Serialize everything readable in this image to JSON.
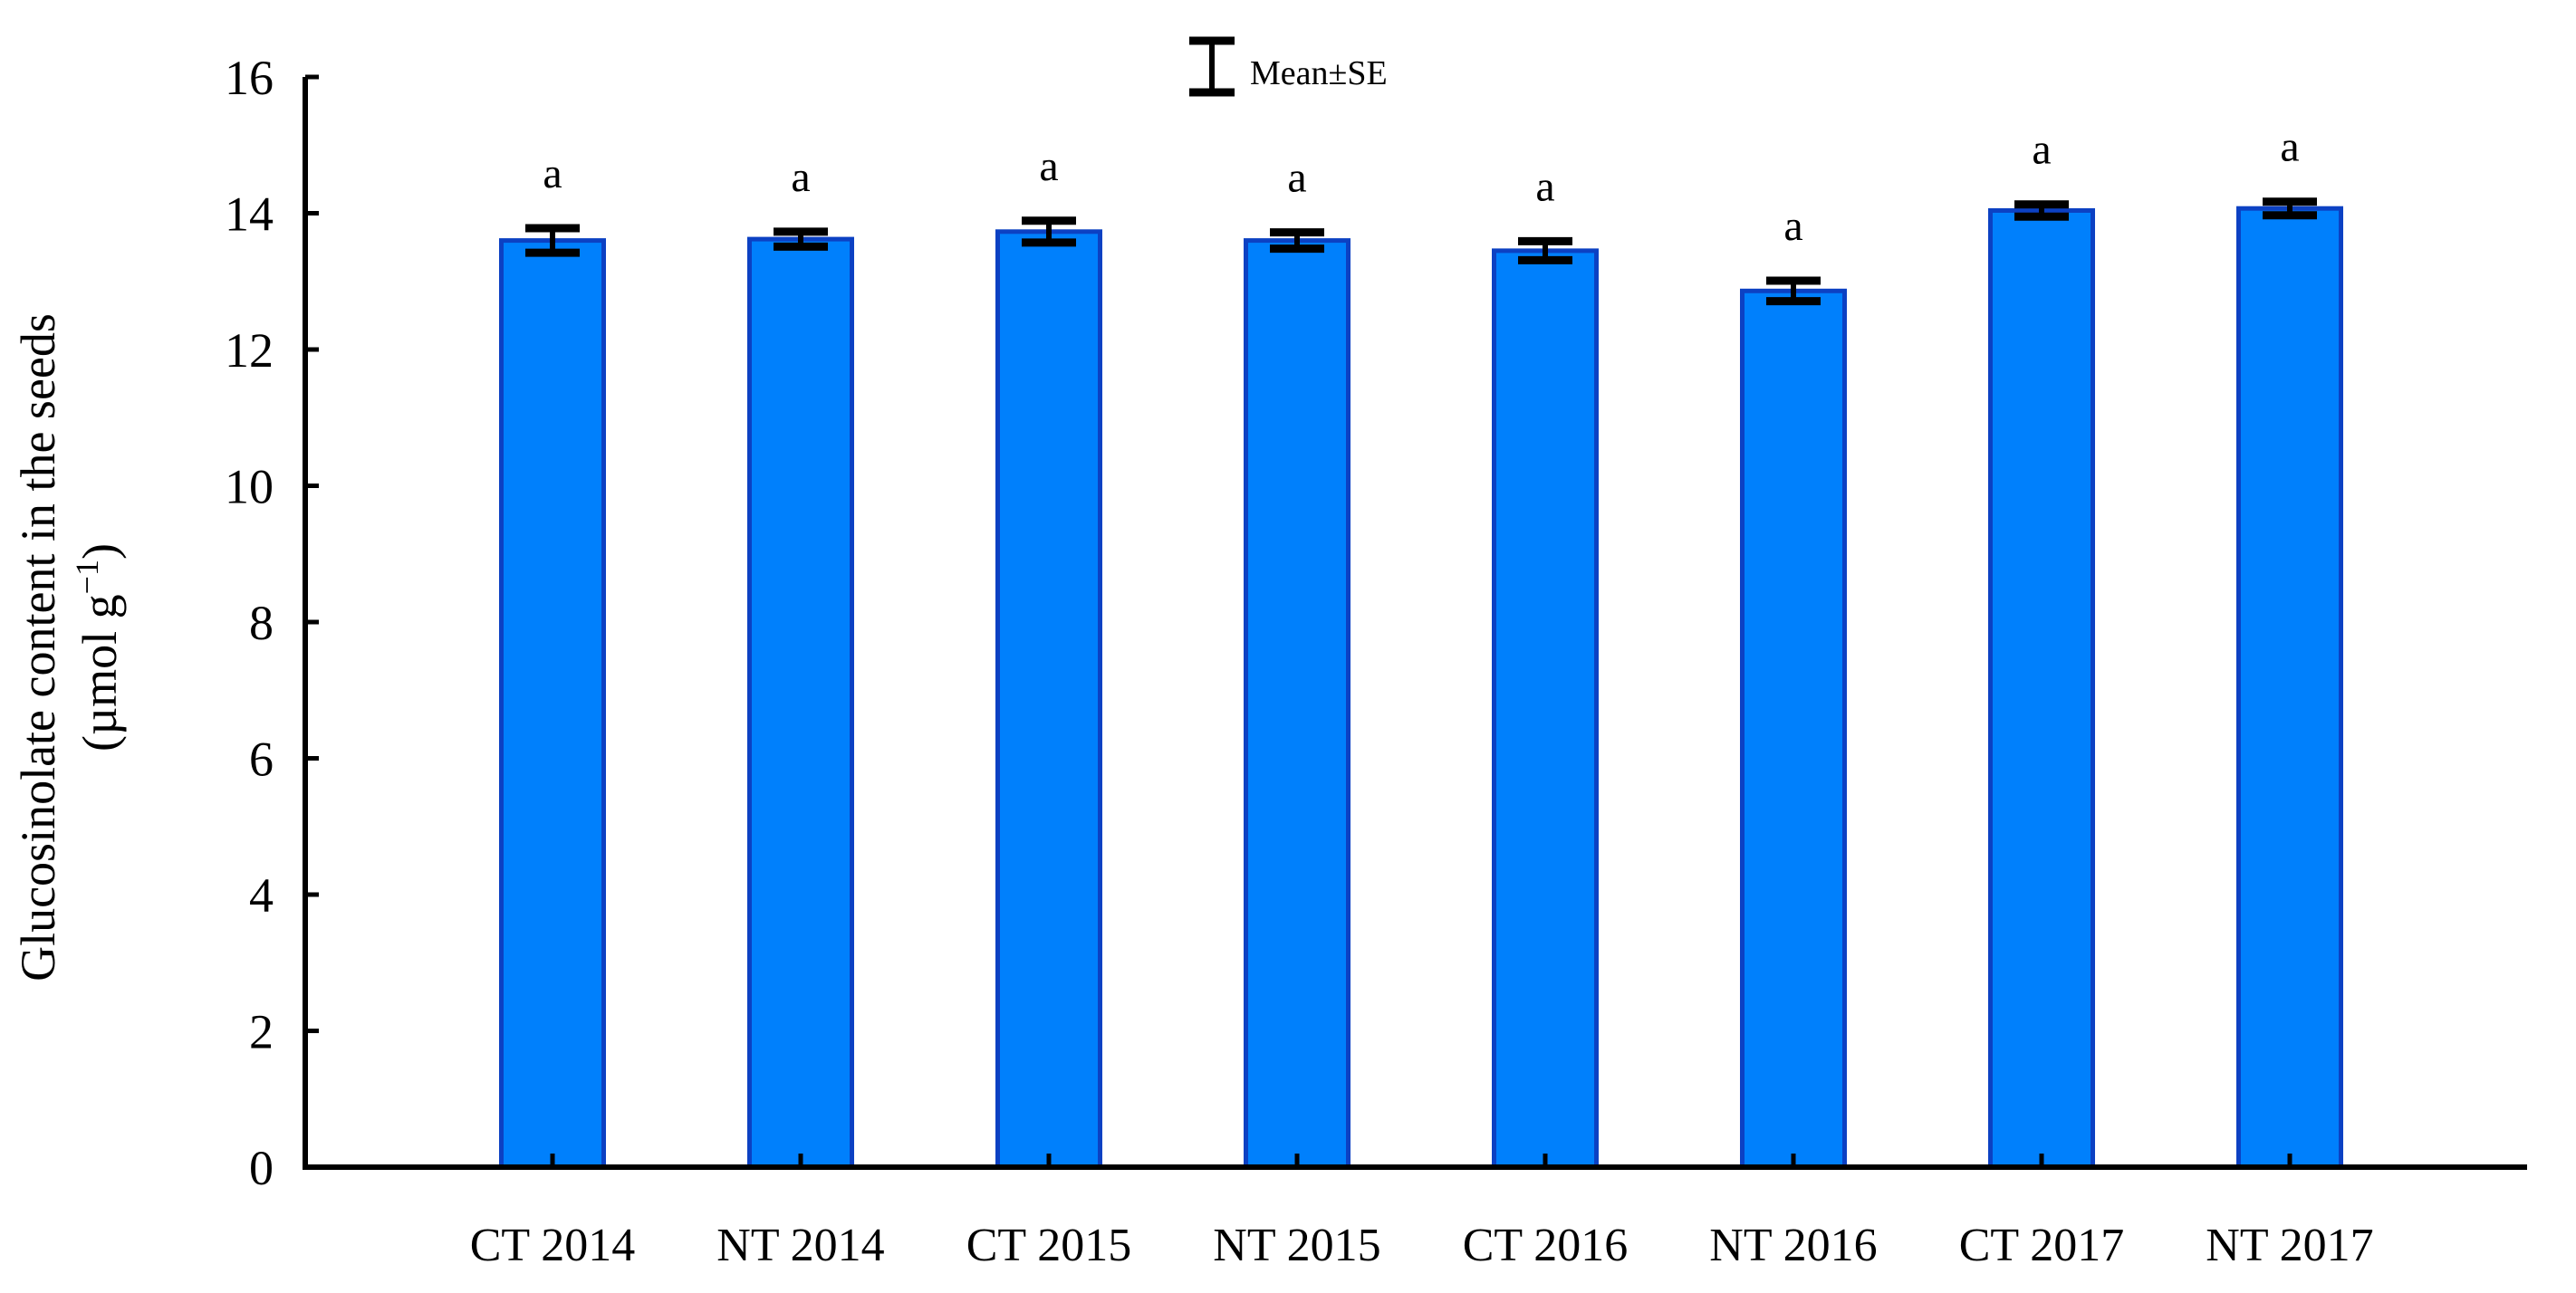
{
  "figure": {
    "background_color": "#ffffff",
    "legend": {
      "label": "Mean±SE"
    },
    "y_axis_title": {
      "line1": "Glucosinolate content in the seeds",
      "unit_prefix": "(µmol g",
      "unit_exponent": "−1",
      "unit_suffix": ")"
    }
  },
  "chart_data": {
    "type": "bar",
    "title": "",
    "categories": [
      "CT 2014",
      "NT 2014",
      "CT 2015",
      "NT 2015",
      "CT 2016",
      "NT 2016",
      "CT 2017",
      "NT 2017"
    ],
    "series": [
      {
        "name": "Glucosinolate content in the seeds (µmol g−1)",
        "values": [
          13.6,
          13.62,
          13.73,
          13.6,
          13.45,
          12.86,
          14.04,
          14.07
        ],
        "errors": [
          0.18,
          0.11,
          0.16,
          0.12,
          0.14,
          0.15,
          0.09,
          0.1
        ]
      }
    ],
    "significance_letters": [
      "a",
      "a",
      "a",
      "a",
      "a",
      "a",
      "a",
      "a"
    ],
    "xlabel": "",
    "ylabel": "Glucosinolate content in the seeds (µmol g−1)",
    "ylim": [
      0,
      16
    ],
    "yticks": [
      0,
      2,
      4,
      6,
      8,
      10,
      12,
      14,
      16
    ],
    "ytick_labels": [
      "0",
      "2",
      "4",
      "6",
      "8",
      "10",
      "12",
      "14",
      "16"
    ],
    "grid": false,
    "legend_label": "Mean±SE",
    "legend_position": "top-center",
    "bar_fill_color": "#0080FC",
    "bar_edge_color": "#0c41c3",
    "error_bar_color": "#000000",
    "axis_color": "#000000"
  }
}
